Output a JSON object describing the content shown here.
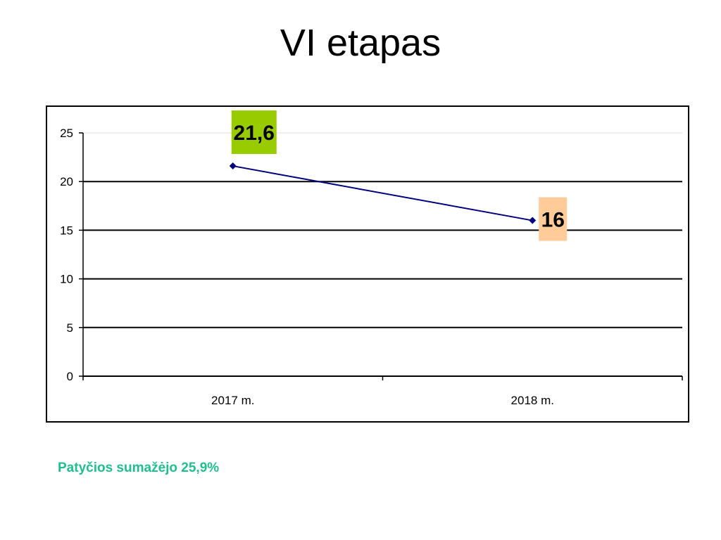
{
  "page": {
    "title": "VI etapas",
    "footnote": "Patyčios sumažėjo 25,9%"
  },
  "colors": {
    "line": "#000080",
    "callout_2017": "#99cc00",
    "callout_2018": "#ffcc99",
    "footnote": "#1fbf8f",
    "gridline": "#000000"
  },
  "chart_data": {
    "type": "line",
    "categories": [
      "2017 m.",
      "2018 m."
    ],
    "series": [
      {
        "values": [
          21.6,
          16
        ]
      }
    ],
    "data_labels": [
      "21,6",
      "16"
    ],
    "ylim": [
      0,
      25
    ],
    "yticks": [
      0,
      5,
      10,
      15,
      20,
      25
    ],
    "grid": true,
    "legend": "none"
  }
}
